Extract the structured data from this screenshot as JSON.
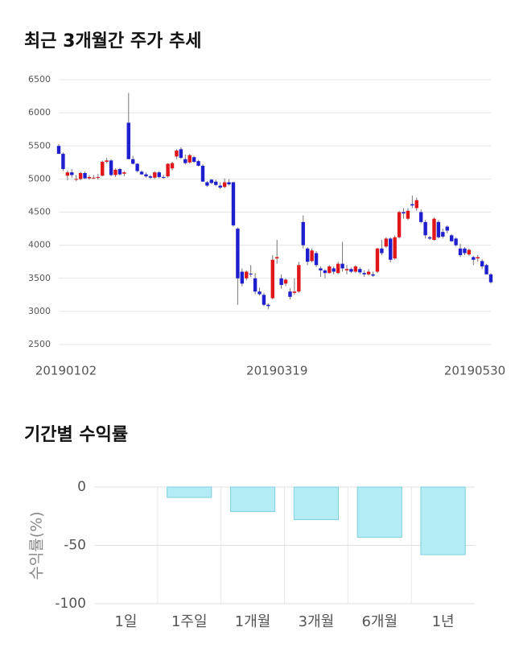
{
  "chart_data": [
    {
      "type": "candlestick",
      "title": "최근 3개월간 주가 추세",
      "categories": [
        "20190102",
        null,
        null,
        null,
        null,
        null,
        null,
        null,
        null,
        null,
        null,
        null,
        null,
        null,
        null,
        null,
        null,
        null,
        null,
        null,
        null,
        null,
        null,
        null,
        null,
        null,
        null,
        null,
        null,
        null,
        null,
        null,
        null,
        null,
        null,
        null,
        null,
        null,
        null,
        null,
        null,
        null,
        null,
        null,
        null,
        null,
        null,
        null,
        null,
        null,
        "20190319",
        null,
        null,
        null,
        null,
        null,
        null,
        null,
        null,
        null,
        null,
        null,
        null,
        null,
        null,
        null,
        null,
        null,
        null,
        null,
        null,
        null,
        null,
        null,
        null,
        null,
        null,
        null,
        null,
        null,
        null,
        null,
        null,
        null,
        null,
        null,
        null,
        null,
        null,
        null,
        null,
        null,
        null,
        null,
        null,
        null,
        null,
        null,
        null,
        "20190530"
      ],
      "ohlc": [
        [
          5500,
          5530,
          5380,
          5380
        ],
        [
          5380,
          5400,
          5120,
          5150
        ],
        [
          5050,
          5130,
          4980,
          5100
        ],
        [
          5100,
          5150,
          5020,
          5060
        ],
        [
          5000,
          5060,
          4970,
          5000
        ],
        [
          5000,
          5110,
          4980,
          5090
        ],
        [
          5090,
          5110,
          5000,
          5010
        ],
        [
          5010,
          5060,
          4990,
          5030
        ],
        [
          5020,
          5060,
          5000,
          5020
        ],
        [
          5020,
          5080,
          4990,
          5030
        ],
        [
          5050,
          5280,
          5040,
          5260
        ],
        [
          5260,
          5320,
          5240,
          5280
        ],
        [
          5280,
          5300,
          5040,
          5060
        ],
        [
          5060,
          5160,
          5030,
          5140
        ],
        [
          5150,
          5170,
          5050,
          5070
        ],
        [
          5080,
          5120,
          5040,
          5100
        ],
        [
          5850,
          6300,
          5300,
          5300
        ],
        [
          5300,
          5350,
          5220,
          5230
        ],
        [
          5230,
          5240,
          5100,
          5120
        ],
        [
          5110,
          5130,
          5060,
          5070
        ],
        [
          5070,
          5100,
          5020,
          5040
        ],
        [
          5040,
          5060,
          5000,
          5020
        ],
        [
          5020,
          5120,
          5000,
          5100
        ],
        [
          5100,
          5120,
          5010,
          5030
        ],
        [
          5030,
          5060,
          5000,
          5020
        ],
        [
          5040,
          5240,
          5020,
          5230
        ],
        [
          5160,
          5260,
          5130,
          5240
        ],
        [
          5340,
          5450,
          5300,
          5430
        ],
        [
          5450,
          5480,
          5300,
          5320
        ],
        [
          5300,
          5370,
          5220,
          5240
        ],
        [
          5250,
          5380,
          5230,
          5360
        ],
        [
          5330,
          5350,
          5240,
          5260
        ],
        [
          5270,
          5290,
          5190,
          5200
        ],
        [
          5200,
          5220,
          4960,
          4960
        ],
        [
          4950,
          4970,
          4880,
          4900
        ],
        [
          4990,
          5000,
          4920,
          4940
        ],
        [
          4960,
          4990,
          4890,
          4910
        ],
        [
          4900,
          4950,
          4850,
          4870
        ],
        [
          4880,
          5010,
          4860,
          4950
        ],
        [
          4950,
          5000,
          4900,
          4920
        ],
        [
          4950,
          4960,
          4280,
          4300
        ],
        [
          4250,
          4270,
          3100,
          3500
        ],
        [
          3600,
          3650,
          3380,
          3420
        ],
        [
          3500,
          3620,
          3470,
          3600
        ],
        [
          3570,
          3700,
          3520,
          3560
        ],
        [
          3500,
          3580,
          3260,
          3300
        ],
        [
          3300,
          3360,
          3240,
          3260
        ],
        [
          3250,
          3280,
          3080,
          3100
        ],
        [
          3100,
          3120,
          3030,
          3080
        ],
        [
          3200,
          3850,
          3180,
          3780
        ],
        [
          3800,
          4080,
          3720,
          3820
        ],
        [
          3500,
          3560,
          3340,
          3400
        ],
        [
          3420,
          3500,
          3380,
          3480
        ],
        [
          3300,
          3350,
          3180,
          3220
        ],
        [
          3280,
          3500,
          3250,
          3300
        ],
        [
          3300,
          3750,
          3280,
          3700
        ],
        [
          4350,
          4450,
          3950,
          4000
        ],
        [
          3950,
          3970,
          3700,
          3750
        ],
        [
          3760,
          3950,
          3740,
          3920
        ],
        [
          3880,
          3910,
          3670,
          3700
        ],
        [
          3650,
          3680,
          3520,
          3620
        ],
        [
          3620,
          3640,
          3500,
          3580
        ],
        [
          3580,
          3700,
          3570,
          3680
        ],
        [
          3650,
          3680,
          3560,
          3600
        ],
        [
          3580,
          3750,
          3560,
          3720
        ],
        [
          3720,
          4050,
          3600,
          3650
        ],
        [
          3620,
          3700,
          3560,
          3640
        ],
        [
          3640,
          3660,
          3580,
          3600
        ],
        [
          3600,
          3700,
          3580,
          3680
        ],
        [
          3640,
          3670,
          3560,
          3590
        ],
        [
          3580,
          3620,
          3520,
          3560
        ],
        [
          3560,
          3640,
          3540,
          3600
        ],
        [
          3560,
          3600,
          3520,
          3540
        ],
        [
          3600,
          3960,
          3580,
          3950
        ],
        [
          3950,
          4080,
          3850,
          3880
        ],
        [
          3980,
          4120,
          3960,
          4100
        ],
        [
          4100,
          4120,
          3740,
          3780
        ],
        [
          3800,
          4150,
          3780,
          4120
        ],
        [
          4120,
          4520,
          4100,
          4500
        ],
        [
          4500,
          4560,
          4400,
          4480
        ],
        [
          4400,
          4560,
          4380,
          4520
        ],
        [
          4620,
          4750,
          4560,
          4600
        ],
        [
          4560,
          4720,
          4520,
          4680
        ],
        [
          4500,
          4540,
          4330,
          4350
        ],
        [
          4350,
          4380,
          4100,
          4150
        ],
        [
          4120,
          4140,
          4080,
          4100
        ],
        [
          4080,
          4420,
          4070,
          4400
        ],
        [
          4350,
          4380,
          4100,
          4120
        ],
        [
          4200,
          4250,
          4100,
          4130
        ],
        [
          4280,
          4300,
          4180,
          4220
        ],
        [
          4150,
          4170,
          4050,
          4060
        ],
        [
          4100,
          4120,
          3980,
          4000
        ],
        [
          3950,
          4020,
          3820,
          3850
        ],
        [
          3950,
          3970,
          3850,
          3880
        ],
        [
          3860,
          3950,
          3840,
          3930
        ],
        [
          3820,
          3840,
          3700,
          3780
        ],
        [
          3800,
          3850,
          3750,
          3820
        ],
        [
          3760,
          3790,
          3640,
          3680
        ],
        [
          3700,
          3720,
          3560,
          3560
        ],
        [
          3560,
          3580,
          3420,
          3440
        ]
      ],
      "up_color": "#e0161b",
      "down_color": "#1f1fcf",
      "ylim": [
        2500,
        6500
      ],
      "yticks": [
        2500,
        3000,
        3500,
        4000,
        4500,
        5000,
        5500,
        6000,
        6500
      ],
      "grid": true
    },
    {
      "type": "bar",
      "title": "기간별 수익률",
      "y_label": "수익률(%)",
      "categories": [
        "1일",
        "1주일",
        "1개월",
        "3개월",
        "6개월",
        "1년"
      ],
      "values": [
        0,
        -9,
        -21,
        -28,
        -43,
        -58
      ],
      "color": "#b3ecf5",
      "ylim": [
        -100,
        0
      ],
      "yticks": [
        0,
        -50,
        -100
      ],
      "grid": true
    }
  ]
}
